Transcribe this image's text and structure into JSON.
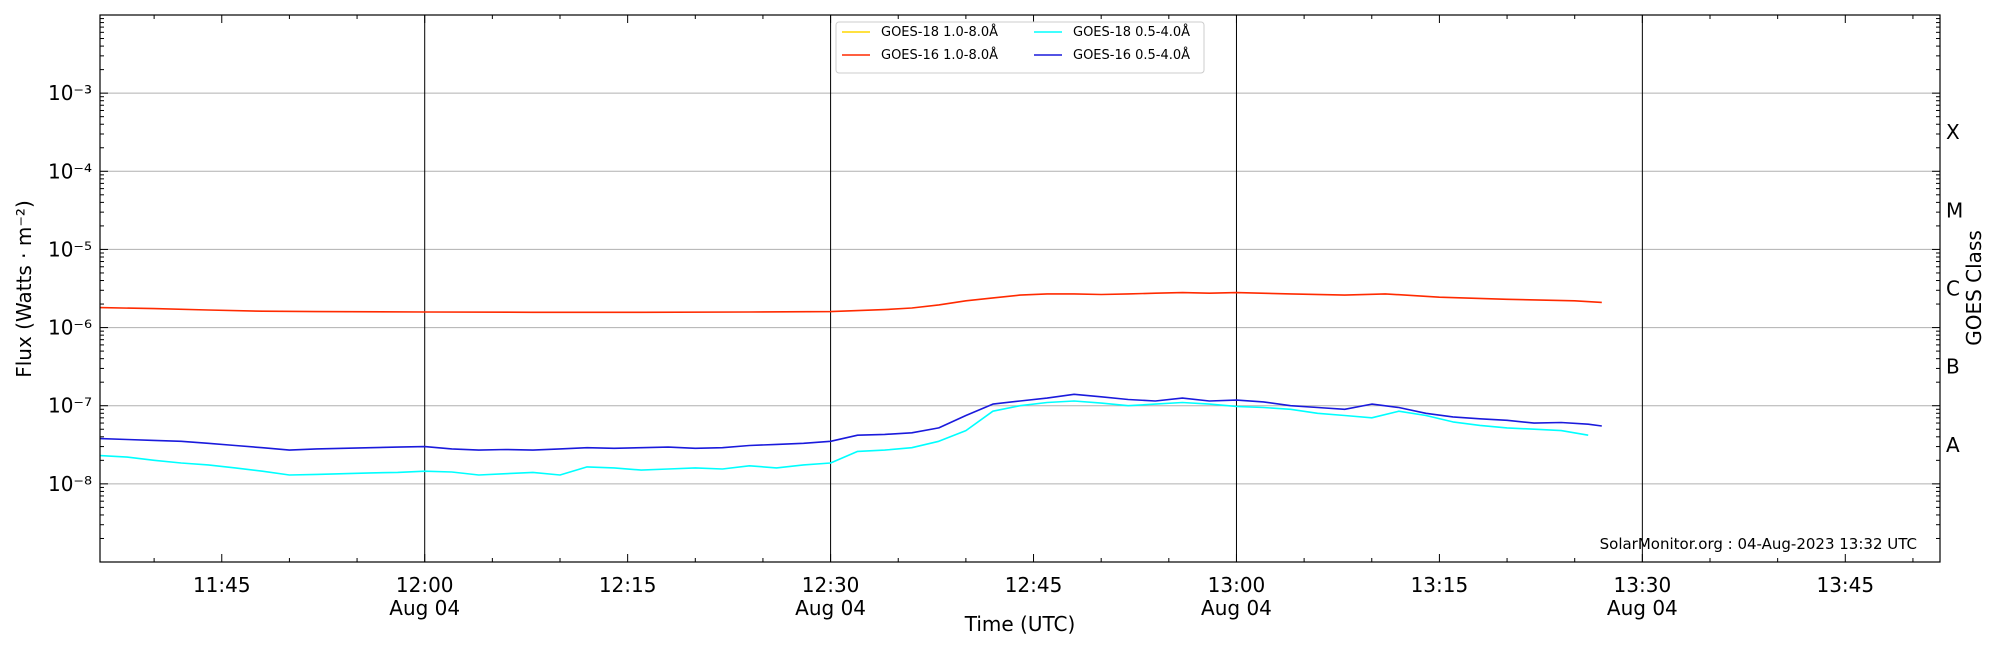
{
  "chart_data": {
    "type": "line",
    "title": "",
    "xlabel": "Time (UTC)",
    "ylabel": "Flux (Watts · m⁻²)",
    "y2label": "GOES Class",
    "yscale": "log",
    "ylim": [
      1e-09,
      0.01
    ],
    "xlim": [
      "11:36",
      "13:52"
    ],
    "x_ticks": [
      {
        "t": "11:45",
        "label": "11:45",
        "date": ""
      },
      {
        "t": "12:00",
        "label": "12:00",
        "date": "Aug 04"
      },
      {
        "t": "12:15",
        "label": "12:15",
        "date": ""
      },
      {
        "t": "12:30",
        "label": "12:30",
        "date": "Aug 04"
      },
      {
        "t": "12:45",
        "label": "12:45",
        "date": ""
      },
      {
        "t": "13:00",
        "label": "13:00",
        "date": "Aug 04"
      },
      {
        "t": "13:15",
        "label": "13:15",
        "date": ""
      },
      {
        "t": "13:30",
        "label": "13:30",
        "date": "Aug 04"
      },
      {
        "t": "13:45",
        "label": "13:45",
        "date": ""
      }
    ],
    "vlines": [
      "12:00",
      "12:30",
      "13:00",
      "13:30"
    ],
    "y_ticks": [
      {
        "v": 1e-08,
        "label": "10⁻⁸"
      },
      {
        "v": 1e-07,
        "label": "10⁻⁷"
      },
      {
        "v": 1e-06,
        "label": "10⁻⁶"
      },
      {
        "v": 1e-05,
        "label": "10⁻⁵"
      },
      {
        "v": 0.0001,
        "label": "10⁻⁴"
      },
      {
        "v": 0.001,
        "label": "10⁻³"
      }
    ],
    "goes_classes": [
      {
        "label": "A",
        "v": 3.16e-08
      },
      {
        "label": "B",
        "v": 3.16e-07
      },
      {
        "label": "C",
        "v": 3.16e-06
      },
      {
        "label": "M",
        "v": 3.16e-05
      },
      {
        "label": "X",
        "v": 0.000316
      }
    ],
    "grid": "horizontal",
    "legend_position": "top-center",
    "annotation": "SolarMonitor.org : 04-Aug-2023 13:32 UTC",
    "series": [
      {
        "name": "GOES-18 1.0-8.0Å",
        "color": "#ffd700",
        "x": [],
        "y": []
      },
      {
        "name": "GOES-16 1.0-8.0Å",
        "color": "#ff2a00",
        "x": [
          "11:36",
          "11:40",
          "11:44",
          "11:48",
          "11:52",
          "12:00",
          "12:08",
          "12:16",
          "12:24",
          "12:30",
          "12:34",
          "12:36",
          "12:38",
          "12:40",
          "12:42",
          "12:44",
          "12:46",
          "12:48",
          "12:50",
          "12:52",
          "12:54",
          "12:56",
          "12:58",
          "13:00",
          "13:04",
          "13:08",
          "13:11",
          "13:15",
          "13:20",
          "13:25",
          "13:27"
        ],
        "y": [
          1.8e-06,
          1.75e-06,
          1.68e-06,
          1.62e-06,
          1.6e-06,
          1.58e-06,
          1.57e-06,
          1.57e-06,
          1.58e-06,
          1.6e-06,
          1.7e-06,
          1.78e-06,
          1.95e-06,
          2.2e-06,
          2.4e-06,
          2.6e-06,
          2.7e-06,
          2.7e-06,
          2.65e-06,
          2.7e-06,
          2.75e-06,
          2.8e-06,
          2.75e-06,
          2.8e-06,
          2.7e-06,
          2.6e-06,
          2.7e-06,
          2.45e-06,
          2.3e-06,
          2.2e-06,
          2.1e-06
        ]
      },
      {
        "name": "GOES-18 0.5-4.0Å",
        "color": "#00ffff",
        "x": [
          "11:36",
          "11:38",
          "11:40",
          "11:42",
          "11:44",
          "11:46",
          "11:48",
          "11:50",
          "11:52",
          "11:54",
          "11:56",
          "11:58",
          "12:00",
          "12:02",
          "12:04",
          "12:06",
          "12:08",
          "12:10",
          "12:12",
          "12:14",
          "12:16",
          "12:18",
          "12:20",
          "12:22",
          "12:24",
          "12:26",
          "12:28",
          "12:30",
          "12:32",
          "12:34",
          "12:36",
          "12:38",
          "12:40",
          "12:42",
          "12:44",
          "12:46",
          "12:48",
          "12:50",
          "12:52",
          "12:54",
          "12:56",
          "12:58",
          "13:00",
          "13:02",
          "13:04",
          "13:06",
          "13:08",
          "13:10",
          "13:12",
          "13:14",
          "13:16",
          "13:18",
          "13:20",
          "13:22",
          "13:24",
          "13:26"
        ],
        "y": [
          2.3e-08,
          2.2e-08,
          2e-08,
          1.85e-08,
          1.75e-08,
          1.6e-08,
          1.45e-08,
          1.3e-08,
          1.32e-08,
          1.35e-08,
          1.38e-08,
          1.4e-08,
          1.45e-08,
          1.42e-08,
          1.3e-08,
          1.35e-08,
          1.4e-08,
          1.3e-08,
          1.65e-08,
          1.6e-08,
          1.5e-08,
          1.55e-08,
          1.6e-08,
          1.55e-08,
          1.7e-08,
          1.6e-08,
          1.75e-08,
          1.85e-08,
          2.6e-08,
          2.7e-08,
          2.9e-08,
          3.5e-08,
          4.8e-08,
          8.5e-08,
          1e-07,
          1.1e-07,
          1.15e-07,
          1.08e-07,
          1e-07,
          1.05e-07,
          1.1e-07,
          1.05e-07,
          9.8e-08,
          9.5e-08,
          9e-08,
          8e-08,
          7.5e-08,
          7e-08,
          8.5e-08,
          7.5e-08,
          6.2e-08,
          5.6e-08,
          5.2e-08,
          5e-08,
          4.8e-08,
          4.2e-08
        ]
      },
      {
        "name": "GOES-16 0.5-4.0Å",
        "color": "#1a1adc",
        "x": [
          "11:36",
          "11:38",
          "11:40",
          "11:42",
          "11:44",
          "11:46",
          "11:48",
          "11:50",
          "11:52",
          "11:54",
          "11:56",
          "11:58",
          "12:00",
          "12:02",
          "12:04",
          "12:06",
          "12:08",
          "12:10",
          "12:12",
          "12:14",
          "12:16",
          "12:18",
          "12:20",
          "12:22",
          "12:24",
          "12:26",
          "12:28",
          "12:30",
          "12:32",
          "12:34",
          "12:36",
          "12:38",
          "12:40",
          "12:42",
          "12:44",
          "12:46",
          "12:48",
          "12:50",
          "12:52",
          "12:54",
          "12:56",
          "12:58",
          "13:00",
          "13:02",
          "13:04",
          "13:06",
          "13:08",
          "13:10",
          "13:12",
          "13:14",
          "13:16",
          "13:18",
          "13:20",
          "13:22",
          "13:24",
          "13:26",
          "13:27"
        ],
        "y": [
          3.8e-08,
          3.7e-08,
          3.6e-08,
          3.5e-08,
          3.3e-08,
          3.1e-08,
          2.9e-08,
          2.7e-08,
          2.8e-08,
          2.85e-08,
          2.9e-08,
          2.95e-08,
          3e-08,
          2.8e-08,
          2.7e-08,
          2.75e-08,
          2.7e-08,
          2.8e-08,
          2.9e-08,
          2.85e-08,
          2.9e-08,
          2.95e-08,
          2.85e-08,
          2.9e-08,
          3.1e-08,
          3.2e-08,
          3.3e-08,
          3.5e-08,
          4.2e-08,
          4.3e-08,
          4.5e-08,
          5.2e-08,
          7.5e-08,
          1.05e-07,
          1.15e-07,
          1.25e-07,
          1.4e-07,
          1.3e-07,
          1.2e-07,
          1.15e-07,
          1.25e-07,
          1.15e-07,
          1.18e-07,
          1.12e-07,
          1e-07,
          9.5e-08,
          9e-08,
          1.05e-07,
          9.5e-08,
          8e-08,
          7.2e-08,
          6.8e-08,
          6.5e-08,
          6e-08,
          6.1e-08,
          5.8e-08,
          5.5e-08
        ]
      }
    ]
  }
}
